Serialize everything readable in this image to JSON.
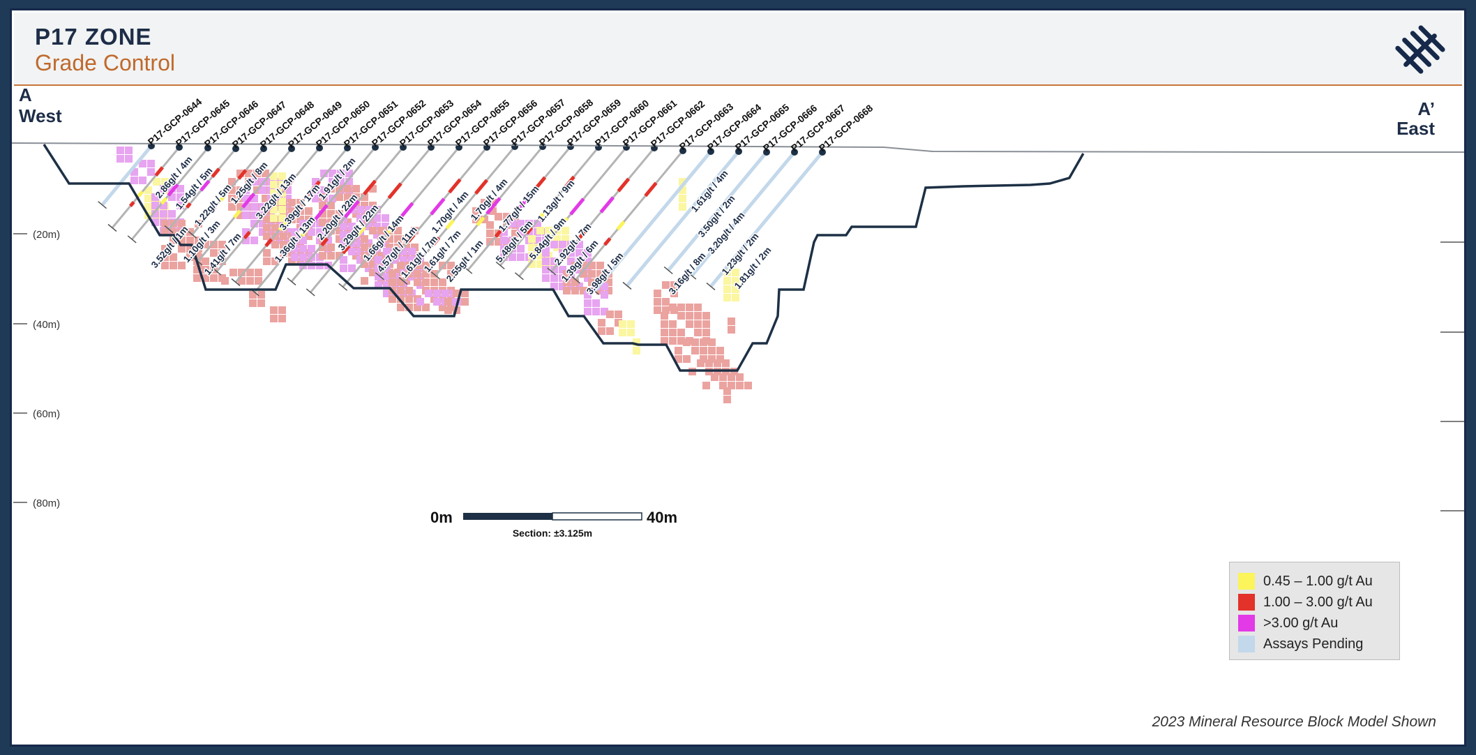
{
  "header": {
    "title": "P17 ZONE",
    "subtitle": "Grade Control"
  },
  "section": {
    "west_label_top": "A",
    "west_label_bottom": "West",
    "east_label_top": "A’",
    "east_label_bottom": "East"
  },
  "depth_labels": [
    "(20m)",
    "(40m)",
    "(60m)",
    "(80m)"
  ],
  "scale": {
    "start_label": "0m",
    "end_label": "40m",
    "section_label": "Section: ±3.125m"
  },
  "drillholes": [
    "P17-GCP-0644",
    "P17-GCP-0645",
    "P17-GCP-0646",
    "P17-GCP-0647",
    "P17-GCP-0648",
    "P17-GCP-0649",
    "P17-GCP-0650",
    "P17-GCP-0651",
    "P17-GCP-0652",
    "P17-GCP-0653",
    "P17-GCP-0654",
    "P17-GCP-0655",
    "P17-GCP-0656",
    "P17-GCP-0657",
    "P17-GCP-0658",
    "P17-GCP-0659",
    "P17-GCP-0660",
    "P17-GCP-0661",
    "P17-GCP-0662",
    "P17-GCP-0663",
    "P17-GCP-0664",
    "P17-GCP-0665",
    "P17-GCP-0666",
    "P17-GCP-0667",
    "P17-GCP-0668"
  ],
  "intercepts": [
    "2.86g/t / 4m",
    "1.54g/t / 5m",
    "1.22g/t / 5m",
    "1.25g/t / 8m",
    "3.22g/t / 13m",
    "3.39g/t / 17m",
    "1.91g/t / 2m",
    "2.20g/t / 22m",
    "3.29g/t / 22m",
    "1.66g/t / 14m",
    "4.57g/t / 11m",
    "1.61g/t / 7m",
    "1.61g/t / 7m",
    "2.55g/t / 1m",
    "1.70g/t / 4m",
    "1.70g/t / 4m",
    "1.77g/t / 15m",
    "1.13g/t / 9m",
    "5.48g/t / 5m",
    "5.84g/t / 9m",
    "2.92g/t / 7m",
    "1.39g/t / 6m",
    "3.98g/t / 5m",
    "3.52g/t / 1m",
    "1.10g/t / 3m",
    "1.41g/t / 7m",
    "1.36g/t / 13m",
    "1.61g/t / 4m",
    "3.50g/t / 2m",
    "3.20g/t / 4m",
    "1.23g/t / 2m",
    "3.16g/t / 8m",
    "1.81g/t / 2m"
  ],
  "legend": [
    {
      "label": "0.45 – 1.00 g/t Au",
      "color": "#fbf45a"
    },
    {
      "label": "1.00 – 3.00 g/t Au",
      "color": "#e2322a"
    },
    {
      "label": ">3.00 g/t Au",
      "color": "#e23ae6"
    },
    {
      "label": "Assays Pending",
      "color": "#c3d8ea"
    }
  ],
  "footer_note": "2023 Mineral Resource Block Model Shown",
  "colors": {
    "block_low": "#eba3a0",
    "block_pink": "#e7a4f0",
    "block_yellow": "#fbf6a0",
    "pit": "#1d3045",
    "hole": "#b4b4b4",
    "pending": "#c3d8ea"
  }
}
